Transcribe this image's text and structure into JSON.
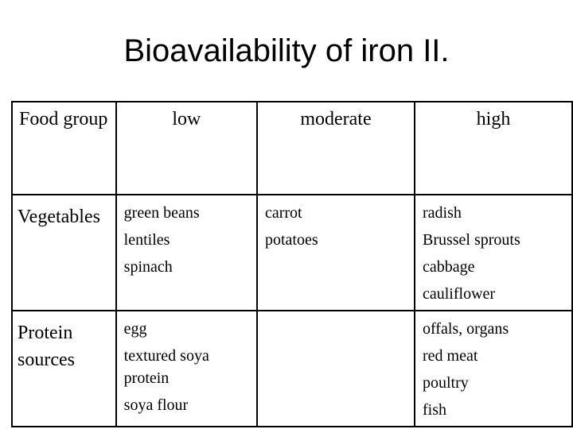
{
  "header": {
    "title": "Bioavailability of iron II."
  },
  "table": {
    "columns": [
      "Food group",
      "low",
      "moderate",
      "high"
    ],
    "rows": [
      {
        "group": "Vegetables",
        "cells": [
          [
            "green beans",
            "lentiles",
            "spinach"
          ],
          [
            "carrot",
            "potatoes"
          ],
          [
            "radish",
            "Brussel sprouts",
            "cabbage",
            "cauliflower"
          ]
        ]
      },
      {
        "group": "Protein sources",
        "cells": [
          [
            "egg",
            "textured soya protein",
            "soya flour"
          ],
          [],
          [
            "offals, organs",
            "red meat",
            "poultry",
            "fish"
          ]
        ]
      }
    ]
  }
}
